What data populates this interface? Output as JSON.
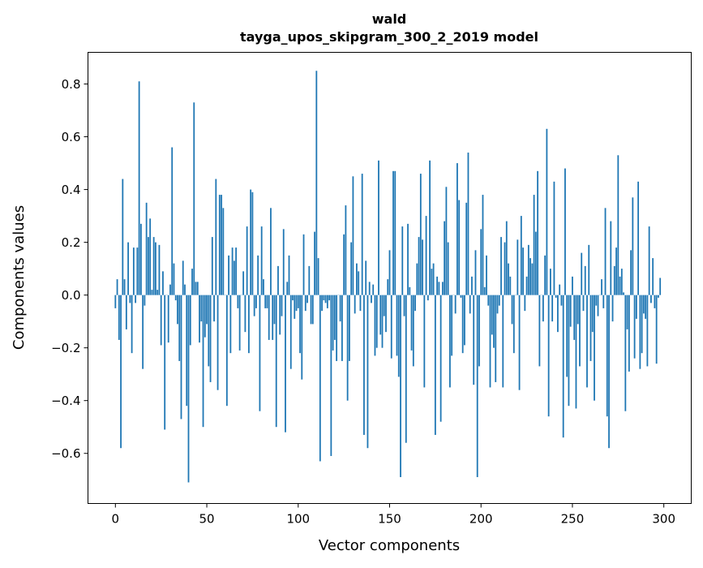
{
  "chart_data": {
    "type": "bar",
    "title": "wald",
    "subtitle": "tayga_upos_skipgram_300_2_2019 model",
    "xlabel": "Vector components",
    "ylabel": "Components values",
    "xlim": [
      -15,
      315
    ],
    "ylim": [
      -0.79,
      0.92
    ],
    "xticks": [
      0,
      50,
      100,
      150,
      200,
      250,
      300
    ],
    "yticks": [
      -0.6,
      -0.4,
      -0.2,
      0.0,
      0.2,
      0.4,
      0.6,
      0.8
    ],
    "xtick_labels": [
      "0",
      "50",
      "100",
      "150",
      "200",
      "250",
      "300"
    ],
    "ytick_labels": [
      "−0.6",
      "−0.4",
      "−0.2",
      "0.0",
      "0.2",
      "0.4",
      "0.6",
      "0.8"
    ],
    "grid": false,
    "color": "#1f77b4",
    "values": [
      -0.05,
      0.06,
      -0.17,
      -0.58,
      0.44,
      0.06,
      -0.13,
      0.2,
      -0.03,
      -0.22,
      0.18,
      -0.03,
      0.18,
      0.81,
      0.27,
      -0.28,
      -0.04,
      0.35,
      0.22,
      0.29,
      0.02,
      0.22,
      0.2,
      0.02,
      0.19,
      -0.19,
      0.09,
      -0.51,
      0.0,
      -0.18,
      0.04,
      0.56,
      0.12,
      -0.02,
      -0.11,
      -0.25,
      -0.47,
      0.13,
      0.04,
      -0.42,
      -0.71,
      -0.19,
      0.1,
      0.73,
      0.05,
      0.05,
      -0.18,
      -0.1,
      -0.5,
      -0.16,
      -0.11,
      -0.27,
      -0.33,
      0.22,
      -0.1,
      0.44,
      -0.36,
      0.38,
      0.38,
      0.33,
      0.0,
      -0.42,
      0.15,
      -0.22,
      0.18,
      0.13,
      0.18,
      -0.05,
      -0.21,
      0.0,
      0.09,
      -0.14,
      0.26,
      -0.22,
      0.4,
      0.39,
      -0.08,
      -0.05,
      0.15,
      -0.44,
      0.26,
      0.06,
      -0.05,
      -0.05,
      -0.17,
      0.33,
      -0.17,
      -0.11,
      -0.5,
      0.11,
      -0.15,
      -0.08,
      0.25,
      -0.52,
      0.05,
      0.15,
      -0.28,
      -0.02,
      -0.09,
      -0.06,
      -0.05,
      -0.22,
      -0.32,
      0.23,
      -0.06,
      -0.03,
      0.11,
      -0.11,
      -0.11,
      0.24,
      0.85,
      0.14,
      -0.63,
      -0.06,
      -0.02,
      -0.03,
      -0.05,
      -0.02,
      -0.61,
      -0.21,
      -0.17,
      -0.25,
      0.0,
      -0.1,
      -0.25,
      0.23,
      0.34,
      -0.4,
      -0.25,
      0.2,
      0.45,
      -0.07,
      0.12,
      0.09,
      -0.06,
      0.46,
      -0.53,
      0.13,
      -0.58,
      0.05,
      -0.03,
      0.04,
      -0.23,
      -0.2,
      0.51,
      -0.15,
      -0.2,
      -0.08,
      -0.14,
      0.06,
      0.17,
      -0.24,
      0.47,
      0.47,
      -0.23,
      -0.31,
      -0.69,
      0.26,
      -0.08,
      -0.56,
      0.27,
      0.03,
      -0.21,
      -0.27,
      -0.06,
      0.12,
      0.22,
      0.46,
      0.21,
      -0.35,
      0.3,
      -0.02,
      0.51,
      0.1,
      0.12,
      -0.53,
      0.07,
      0.05,
      -0.48,
      0.05,
      0.28,
      0.41,
      0.2,
      -0.35,
      -0.23,
      0.0,
      -0.07,
      0.5,
      0.36,
      -0.01,
      -0.22,
      -0.19,
      0.35,
      0.54,
      -0.07,
      0.07,
      -0.34,
      0.17,
      -0.69,
      -0.27,
      0.25,
      0.38,
      0.03,
      0.15,
      -0.04,
      -0.35,
      -0.15,
      -0.2,
      -0.33,
      -0.07,
      -0.04,
      0.22,
      -0.35,
      0.2,
      0.28,
      0.12,
      0.07,
      -0.11,
      -0.22,
      0.0,
      0.21,
      -0.36,
      0.3,
      0.18,
      -0.06,
      0.07,
      0.19,
      0.14,
      0.12,
      0.38,
      0.24,
      0.47,
      -0.27,
      0.0,
      -0.1,
      0.15,
      0.63,
      -0.46,
      0.1,
      -0.1,
      0.43,
      -0.01,
      -0.14,
      0.04,
      -0.04,
      -0.54,
      0.48,
      -0.31,
      -0.42,
      -0.12,
      0.07,
      -0.17,
      -0.43,
      -0.11,
      -0.27,
      0.16,
      -0.06,
      0.11,
      -0.35,
      0.19,
      -0.25,
      -0.14,
      -0.4,
      -0.04,
      -0.08,
      0.0,
      0.06,
      -0.05,
      0.33,
      -0.46,
      -0.58,
      0.28,
      -0.1,
      0.11,
      0.18,
      0.53,
      0.07,
      0.1,
      0.01,
      -0.44,
      -0.13,
      -0.29,
      0.17,
      0.37,
      -0.24,
      -0.09,
      0.43,
      -0.28,
      -0.22,
      -0.07,
      -0.09,
      -0.27,
      0.26,
      -0.03,
      0.14,
      -0.05,
      -0.26,
      -0.01,
      0.065
    ]
  }
}
